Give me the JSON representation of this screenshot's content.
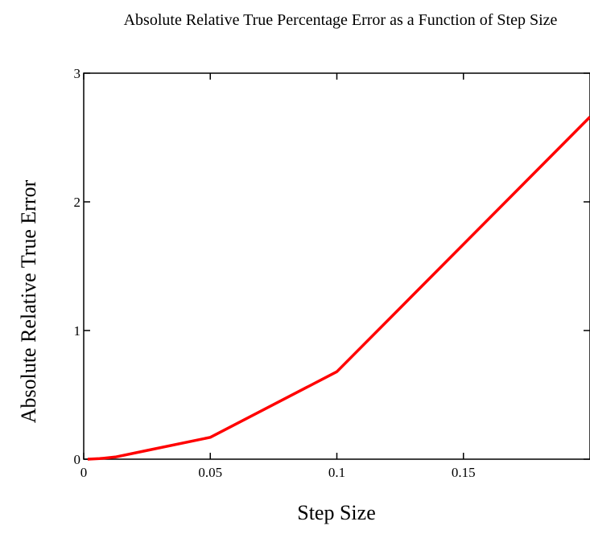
{
  "chart_data": {
    "type": "line",
    "title": "Absolute Relative True Percentage Error as a Function of Step Size",
    "xlabel": "Step Size",
    "ylabel": "Absolute Relative True Error",
    "xlim": [
      0,
      0.2
    ],
    "ylim": [
      0,
      3
    ],
    "xticks": [
      0,
      0.05,
      0.1,
      0.15
    ],
    "xtick_labels": [
      "0",
      "0.05",
      "0.1",
      "0.15"
    ],
    "yticks": [
      0,
      1,
      2,
      3
    ],
    "ytick_labels": [
      "0",
      "1",
      "2",
      "3"
    ],
    "grid": false,
    "series": [
      {
        "color": "#ff0000",
        "x": [
          0.00156,
          0.00313,
          0.00625,
          0.0125,
          0.025,
          0.05,
          0.1,
          0.2
        ],
        "y": [
          0.0002,
          0.0011,
          0.0043,
          0.0171,
          0.0684,
          0.17,
          0.68,
          2.66
        ]
      }
    ]
  }
}
